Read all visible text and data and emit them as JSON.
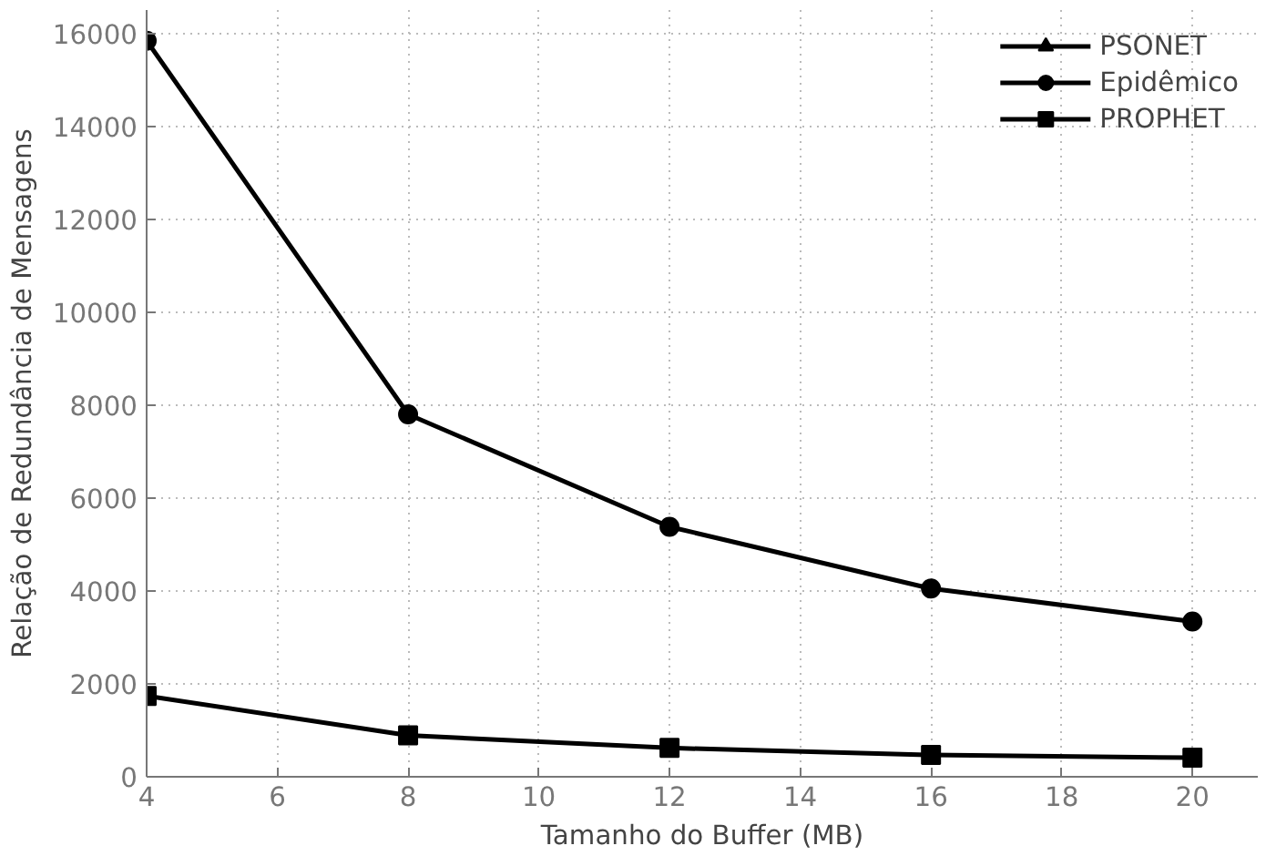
{
  "chart_data": {
    "type": "line",
    "xlabel": "Tamanho do Buffer (MB)",
    "ylabel": "Relação de Redundância de Mensagens",
    "x": [
      4,
      8,
      12,
      16,
      20
    ],
    "series": [
      {
        "name": "PSONET",
        "color": "#000000",
        "marker": "triangle",
        "values": [
          null,
          null,
          null,
          null,
          null
        ]
      },
      {
        "name": "Epidêmico",
        "color": "#000000",
        "marker": "circle",
        "values": [
          15840,
          7800,
          5380,
          4050,
          3340
        ]
      },
      {
        "name": "PROPHET",
        "color": "#000000",
        "marker": "square",
        "values": [
          1740,
          890,
          620,
          470,
          410
        ]
      }
    ],
    "xlim": [
      4,
      21
    ],
    "ylim": [
      0,
      16500
    ],
    "xticks": [
      4,
      6,
      8,
      10,
      12,
      14,
      16,
      18,
      20
    ],
    "yticks": [
      0,
      2000,
      4000,
      6000,
      8000,
      10000,
      12000,
      14000,
      16000
    ],
    "grid": true,
    "legend": "top right",
    "line_style": "solid"
  }
}
